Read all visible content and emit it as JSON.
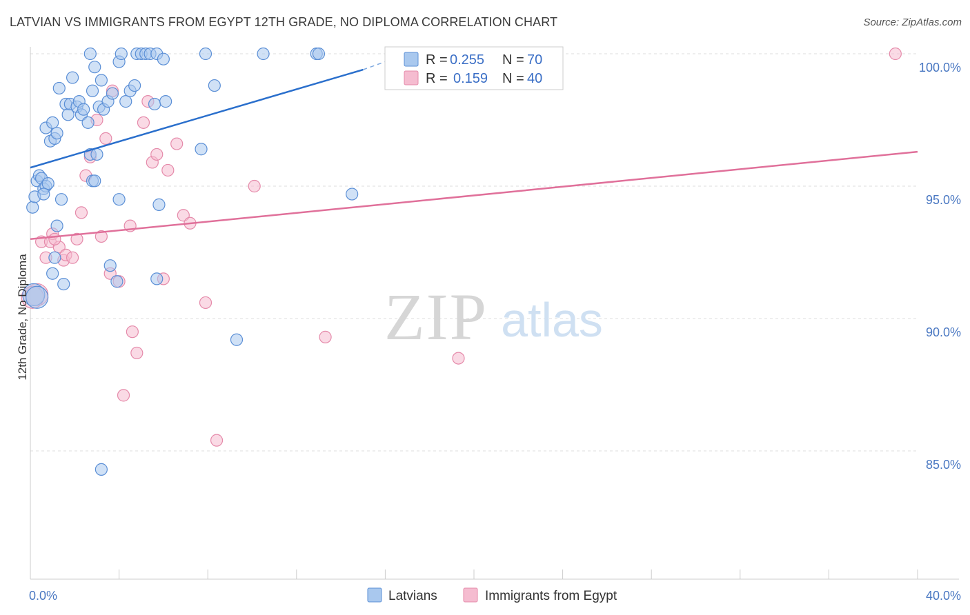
{
  "title": "LATVIAN VS IMMIGRANTS FROM EGYPT 12TH GRADE, NO DIPLOMA CORRELATION CHART",
  "source": "Source: ZipAtlas.com",
  "watermark": {
    "zip": "ZIP",
    "atlas": "atlas"
  },
  "colors": {
    "blue_fill": "#a9c8ee",
    "blue_stroke": "#5b8fd6",
    "blue_line": "#2a6fcc",
    "pink_fill": "#f5bcd0",
    "pink_stroke": "#e58aaa",
    "pink_line": "#e0709a",
    "tick_text": "#4a78c2",
    "grid": "#dddddd"
  },
  "legend": {
    "r_label": "R =",
    "n_label": "N =",
    "rows": [
      {
        "r": "0.255",
        "n": "70"
      },
      {
        "r": "0.159",
        "n": "40"
      }
    ]
  },
  "chart_data": {
    "type": "scatter",
    "title": "LATVIAN VS IMMIGRANTS FROM EGYPT 12TH GRADE, NO DIPLOMA CORRELATION CHART",
    "xlabel": "",
    "ylabel": "12th Grade, No Diploma",
    "xlim": [
      0,
      40
    ],
    "ylim": [
      80.5,
      101
    ],
    "x_tick_labels": [
      "0.0%",
      "40.0%"
    ],
    "y_ticks": [
      100,
      95,
      90,
      85
    ],
    "y_tick_labels": [
      "100.0%",
      "95.0%",
      "90.0%",
      "85.0%"
    ],
    "grid": "horizontal dashed",
    "legend_placement": "top-center",
    "series": [
      {
        "name": "Latvians",
        "r": 0.255,
        "n": 70,
        "trend": {
          "x": [
            0,
            15
          ],
          "y": [
            95.7,
            99.4
          ],
          "dashed_to": [
            17,
            100.0
          ]
        },
        "points": [
          [
            0.1,
            94.2
          ],
          [
            0.2,
            94.6
          ],
          [
            0.3,
            95.2
          ],
          [
            0.4,
            95.4
          ],
          [
            0.5,
            95.3
          ],
          [
            0.6,
            94.9
          ],
          [
            0.7,
            95.0
          ],
          [
            0.8,
            95.1
          ],
          [
            0.7,
            97.2
          ],
          [
            0.9,
            96.7
          ],
          [
            1.0,
            97.4
          ],
          [
            1.1,
            96.8
          ],
          [
            1.2,
            97.0
          ],
          [
            1.4,
            94.5
          ],
          [
            1.3,
            98.7
          ],
          [
            1.6,
            98.1
          ],
          [
            1.7,
            97.7
          ],
          [
            1.8,
            98.1
          ],
          [
            1.9,
            99.1
          ],
          [
            2.1,
            98.0
          ],
          [
            2.2,
            98.2
          ],
          [
            2.3,
            97.7
          ],
          [
            2.4,
            97.9
          ],
          [
            2.6,
            97.4
          ],
          [
            2.7,
            96.2
          ],
          [
            2.8,
            95.2
          ],
          [
            2.9,
            95.2
          ],
          [
            2.7,
            100.0
          ],
          [
            2.8,
            98.6
          ],
          [
            2.9,
            99.5
          ],
          [
            3.0,
            96.2
          ],
          [
            3.1,
            98.0
          ],
          [
            3.2,
            99.0
          ],
          [
            3.3,
            97.9
          ],
          [
            3.5,
            98.2
          ],
          [
            3.7,
            98.5
          ],
          [
            4.0,
            99.7
          ],
          [
            4.0,
            94.5
          ],
          [
            4.1,
            100.0
          ],
          [
            4.3,
            98.2
          ],
          [
            4.5,
            98.6
          ],
          [
            4.7,
            98.8
          ],
          [
            4.8,
            100.0
          ],
          [
            5.0,
            100.0
          ],
          [
            5.2,
            100.0
          ],
          [
            5.4,
            100.0
          ],
          [
            5.7,
            100.0
          ],
          [
            5.6,
            98.1
          ],
          [
            6.0,
            99.8
          ],
          [
            5.8,
            94.3
          ],
          [
            6.1,
            98.2
          ],
          [
            7.7,
            96.4
          ],
          [
            7.9,
            100.0
          ],
          [
            8.3,
            98.8
          ],
          [
            10.5,
            100.0
          ],
          [
            12.9,
            100.0
          ],
          [
            13.0,
            100.0
          ],
          [
            14.5,
            94.7
          ],
          [
            1.2,
            93.5
          ],
          [
            1.1,
            92.3
          ],
          [
            1.0,
            91.7
          ],
          [
            1.5,
            91.3
          ],
          [
            3.6,
            92.0
          ],
          [
            3.9,
            91.4
          ],
          [
            5.7,
            91.5
          ],
          [
            9.3,
            89.2
          ],
          [
            3.2,
            84.3
          ],
          [
            0.15,
            90.9
          ],
          [
            0.3,
            90.8
          ],
          [
            0.6,
            94.7
          ]
        ]
      },
      {
        "name": "Immigrants from Egypt",
        "r": 0.159,
        "n": 40,
        "trend": {
          "x": [
            0,
            40
          ],
          "y": [
            93.0,
            96.3
          ]
        },
        "points": [
          [
            0.3,
            90.9
          ],
          [
            0.5,
            92.9
          ],
          [
            0.7,
            92.3
          ],
          [
            0.9,
            92.9
          ],
          [
            1.0,
            93.2
          ],
          [
            1.3,
            92.7
          ],
          [
            1.5,
            92.2
          ],
          [
            1.6,
            92.4
          ],
          [
            1.9,
            92.3
          ],
          [
            2.1,
            93.0
          ],
          [
            2.3,
            94.0
          ],
          [
            2.5,
            95.4
          ],
          [
            2.7,
            96.1
          ],
          [
            3.0,
            97.5
          ],
          [
            3.2,
            93.1
          ],
          [
            3.4,
            96.8
          ],
          [
            3.7,
            98.6
          ],
          [
            4.0,
            91.4
          ],
          [
            4.5,
            93.5
          ],
          [
            4.6,
            89.5
          ],
          [
            4.8,
            88.7
          ],
          [
            4.2,
            87.1
          ],
          [
            5.1,
            97.4
          ],
          [
            5.3,
            98.2
          ],
          [
            5.5,
            95.9
          ],
          [
            5.7,
            96.2
          ],
          [
            6.2,
            95.6
          ],
          [
            6.6,
            96.6
          ],
          [
            6.9,
            93.9
          ],
          [
            7.2,
            93.6
          ],
          [
            6.0,
            91.5
          ],
          [
            7.9,
            90.6
          ],
          [
            8.4,
            85.4
          ],
          [
            10.1,
            95.0
          ],
          [
            13.3,
            89.3
          ],
          [
            19.3,
            88.5
          ],
          [
            39.0,
            100.0
          ],
          [
            0.1,
            90.8
          ],
          [
            1.1,
            93.0
          ],
          [
            3.6,
            91.7
          ]
        ]
      }
    ]
  }
}
